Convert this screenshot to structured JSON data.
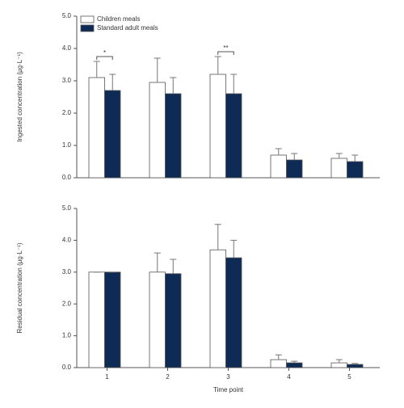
{
  "chart_data": [
    {
      "type": "bar",
      "ylabel": "Ingested concentration (μg·L⁻¹)",
      "ylim": [
        0,
        5
      ],
      "yticks": [
        {
          "value": 0,
          "label": "0.0"
        },
        {
          "value": 1,
          "label": "1.0"
        },
        {
          "value": 2,
          "label": "2.0"
        },
        {
          "value": 3,
          "label": "3.0"
        },
        {
          "value": 4,
          "label": "4.0"
        },
        {
          "value": 5,
          "label": "5.0"
        }
      ],
      "legend": "upper left",
      "annotations": [
        "*",
        null,
        "**",
        null,
        null
      ],
      "series": [
        {
          "name": "Children meals",
          "color": "#ffffff",
          "values": [
            3.1,
            2.95,
            3.2,
            0.7,
            0.6
          ],
          "errors": [
            0.5,
            0.75,
            0.55,
            0.2,
            0.15
          ]
        },
        {
          "name": "Standard adult meals",
          "color": "#0d2b55",
          "values": [
            2.7,
            2.6,
            2.6,
            0.55,
            0.5
          ],
          "errors": [
            0.5,
            0.5,
            0.6,
            0.2,
            0.2
          ]
        }
      ]
    },
    {
      "type": "bar",
      "ylabel": "Residual concentration (μg·L⁻¹)",
      "xlabel": "Time point",
      "categories": [
        "1",
        "2",
        "3",
        "4",
        "5"
      ],
      "ylim": [
        0,
        5
      ],
      "yticks": [
        {
          "value": 0,
          "label": "0.0"
        },
        {
          "value": 1,
          "label": "1.0"
        },
        {
          "value": 2,
          "label": "2.0"
        },
        {
          "value": 3,
          "label": "3.0"
        },
        {
          "value": 4,
          "label": "4.0"
        },
        {
          "value": 5,
          "label": "5.0"
        }
      ],
      "series": [
        {
          "color": "#ffffff",
          "values": [
            3.0,
            3.0,
            3.7,
            0.25,
            0.15
          ],
          "errors": [
            0,
            0.6,
            0.8,
            0.15,
            0.1
          ]
        },
        {
          "color": "#0d2b55",
          "values": [
            3.0,
            2.95,
            3.45,
            0.15,
            0.1
          ],
          "errors": [
            0,
            0.45,
            0.55,
            0.05,
            0.03
          ]
        }
      ]
    }
  ]
}
